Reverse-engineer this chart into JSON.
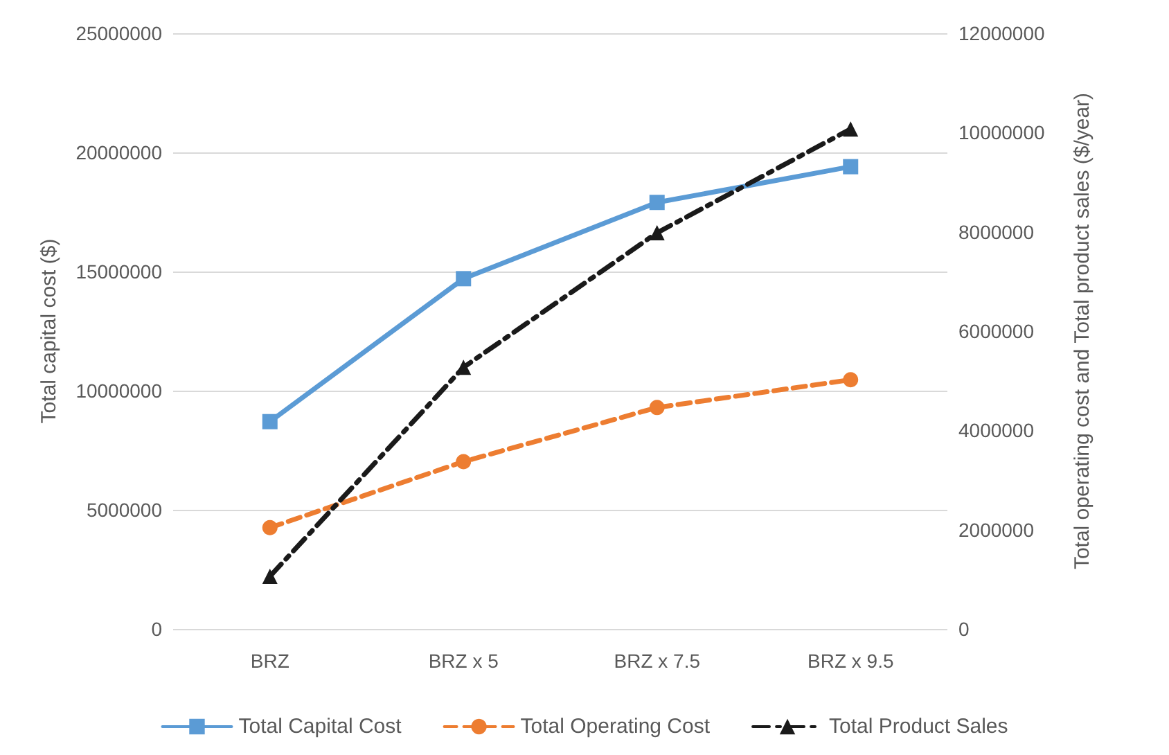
{
  "chart_data": {
    "type": "line",
    "categories": [
      "BRZ",
      "BRZ x 5",
      "BRZ x 7.5",
      "BRZ x 9.5"
    ],
    "ylabel": "Total capital cost ($)",
    "y2label": "Total operating cost and Total product sales ($/year)",
    "ylim": [
      0,
      25000000
    ],
    "yticks": [
      0,
      5000000,
      10000000,
      15000000,
      20000000,
      25000000
    ],
    "y2lim": [
      0,
      12000000
    ],
    "y2ticks": [
      0,
      2000000,
      4000000,
      6000000,
      8000000,
      10000000,
      12000000
    ],
    "grid": "y",
    "legend": "bottom",
    "series": [
      {
        "name": "Total Capital Cost",
        "color": "#5b9bd5",
        "marker": "square",
        "line_style": "solid",
        "values": [
          8700000,
          14700000,
          17900000,
          19400000
        ]
      },
      {
        "name": "Total Operating Cost",
        "color": "#ed7d31",
        "marker": "circle",
        "line_style": "dashed",
        "axis": "y2",
        "values": [
          2040000,
          3370000,
          4460000,
          5020000
        ]
      },
      {
        "name": "Total Product Sales",
        "color": "#1a1a1a",
        "marker": "triangle",
        "line_style": "dashdot",
        "axis": "y2",
        "values": [
          1060000,
          5270000,
          7980000,
          10070000
        ]
      }
    ]
  }
}
